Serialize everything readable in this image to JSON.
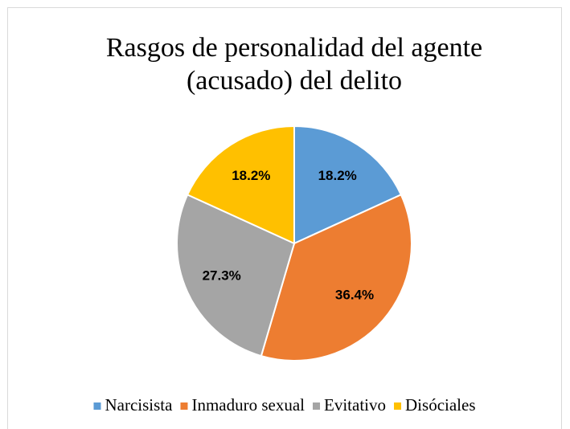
{
  "chart_data": {
    "type": "pie",
    "title": [
      "Rasgos de personalidad del agente",
      "(acusado) del delito"
    ],
    "categories": [
      "Narcisista",
      "Inmaduro sexual",
      "Evitativo",
      "Disóciales"
    ],
    "values": [
      18.2,
      36.4,
      27.3,
      18.2
    ],
    "value_labels": [
      "18.2%",
      "36.4%",
      "27.3%",
      "18.2%"
    ],
    "colors": [
      "#5b9bd5",
      "#ed7d31",
      "#a5a5a5",
      "#ffc000"
    ],
    "legend": "bottom"
  }
}
